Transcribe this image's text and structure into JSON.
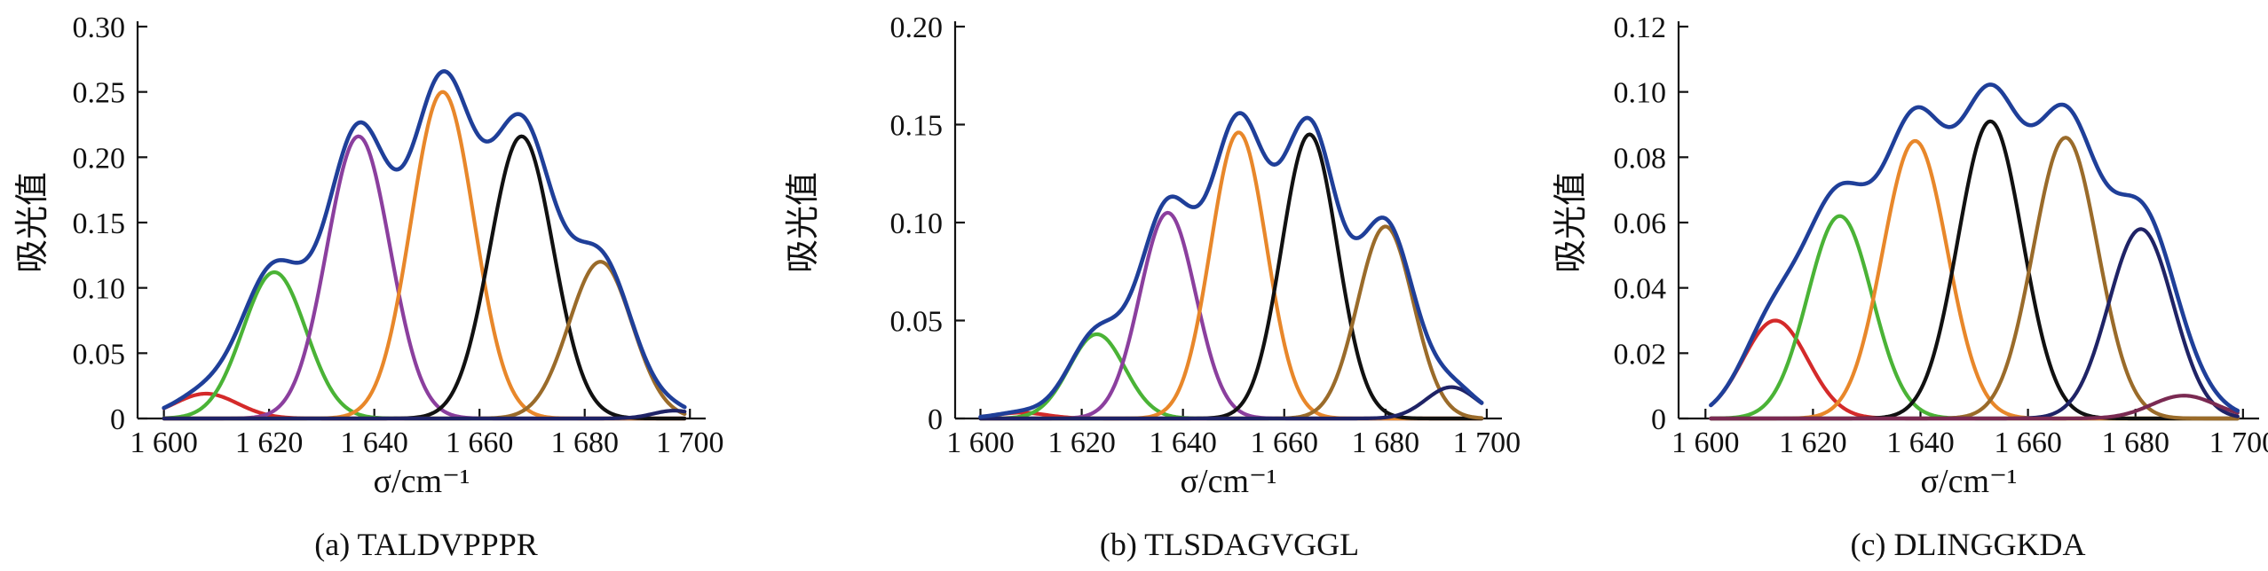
{
  "chart_data": [
    {
      "type": "line",
      "caption": "(a) TALDVPPPR",
      "xlabel": "σ/cm⁻¹",
      "ylabel": "吸光值",
      "xlim": [
        1595,
        1703
      ],
      "ylim": [
        0,
        0.3
      ],
      "xticks": [
        1600,
        1620,
        1640,
        1660,
        1680,
        1700
      ],
      "xtick_labels": [
        "1 600",
        "1 620",
        "1 640",
        "1 660",
        "1 680",
        "1 700"
      ],
      "yticks": [
        0,
        0.05,
        0.1,
        0.15,
        0.2,
        0.25,
        0.3
      ],
      "ytick_labels": [
        "0",
        "0.05",
        "0.10",
        "0.15",
        "0.20",
        "0.25",
        "0.30"
      ],
      "x_range": [
        1600,
        1699
      ],
      "series": [
        {
          "color": "#1f3f99",
          "role": "envelope"
        },
        {
          "color": "#d42a2a",
          "center": 1608,
          "amplitude": 0.019,
          "width": 6
        },
        {
          "color": "#4ab336",
          "center": 1621,
          "amplitude": 0.112,
          "width": 6
        },
        {
          "color": "#8b3f9e",
          "center": 1637,
          "amplitude": 0.216,
          "width": 6
        },
        {
          "color": "#e8872a",
          "center": 1653,
          "amplitude": 0.25,
          "width": 6
        },
        {
          "color": "#111111",
          "center": 1668,
          "amplitude": 0.216,
          "width": 6
        },
        {
          "color": "#9a6b2a",
          "center": 1683,
          "amplitude": 0.12,
          "width": 6
        },
        {
          "color": "#1f2366",
          "center": 1697,
          "amplitude": 0.006,
          "width": 4
        }
      ]
    },
    {
      "type": "line",
      "caption": "(b) TLSDAGVGGL",
      "xlabel": "σ/cm⁻¹",
      "ylabel": "吸光值",
      "xlim": [
        1595,
        1703
      ],
      "ylim": [
        0,
        0.2
      ],
      "xticks": [
        1600,
        1620,
        1640,
        1660,
        1680,
        1700
      ],
      "xtick_labels": [
        "1 600",
        "1 620",
        "1 640",
        "1 660",
        "1 680",
        "1 700"
      ],
      "yticks": [
        0,
        0.05,
        0.1,
        0.15,
        0.2
      ],
      "ytick_labels": [
        "0",
        "0.05",
        "0.10",
        "0.15",
        "0.20"
      ],
      "x_range": [
        1600,
        1699
      ],
      "series": [
        {
          "color": "#1f3f99",
          "role": "envelope"
        },
        {
          "color": "#d42a2a",
          "center": 1608,
          "amplitude": 0.003,
          "width": 5
        },
        {
          "color": "#4ab336",
          "center": 1623,
          "amplitude": 0.043,
          "width": 5.5
        },
        {
          "color": "#8b3f9e",
          "center": 1637,
          "amplitude": 0.105,
          "width": 5.5
        },
        {
          "color": "#e8872a",
          "center": 1651,
          "amplitude": 0.146,
          "width": 5.5
        },
        {
          "color": "#111111",
          "center": 1665,
          "amplitude": 0.145,
          "width": 5.5
        },
        {
          "color": "#9a6b2a",
          "center": 1680,
          "amplitude": 0.098,
          "width": 5.5
        },
        {
          "color": "#1f2366",
          "center": 1693,
          "amplitude": 0.016,
          "width": 5
        }
      ]
    },
    {
      "type": "line",
      "caption": "(c) DLINGGKDA",
      "xlabel": "σ/cm⁻¹",
      "ylabel": "吸光值",
      "xlim": [
        1595,
        1703
      ],
      "ylim": [
        0,
        0.12
      ],
      "xticks": [
        1600,
        1620,
        1640,
        1660,
        1680,
        1700
      ],
      "xtick_labels": [
        "1 600",
        "1 620",
        "1 640",
        "1 660",
        "1 680",
        "1 700"
      ],
      "yticks": [
        0,
        0.02,
        0.04,
        0.06,
        0.08,
        0.1,
        0.12
      ],
      "ytick_labels": [
        "0",
        "0.02",
        "0.04",
        "0.06",
        "0.08",
        "0.10",
        "0.12"
      ],
      "x_range": [
        1601,
        1699
      ],
      "series": [
        {
          "color": "#1f3f99",
          "role": "envelope"
        },
        {
          "color": "#d42a2a",
          "center": 1613,
          "amplitude": 0.03,
          "width": 6
        },
        {
          "color": "#4ab336",
          "center": 1625,
          "amplitude": 0.062,
          "width": 6
        },
        {
          "color": "#e8872a",
          "center": 1639,
          "amplitude": 0.085,
          "width": 6
        },
        {
          "color": "#111111",
          "center": 1653,
          "amplitude": 0.091,
          "width": 6
        },
        {
          "color": "#9a6b2a",
          "center": 1667,
          "amplitude": 0.086,
          "width": 6
        },
        {
          "color": "#1f2366",
          "center": 1681,
          "amplitude": 0.058,
          "width": 6
        },
        {
          "color": "#7a2a52",
          "center": 1689,
          "amplitude": 0.007,
          "width": 6
        }
      ]
    }
  ]
}
